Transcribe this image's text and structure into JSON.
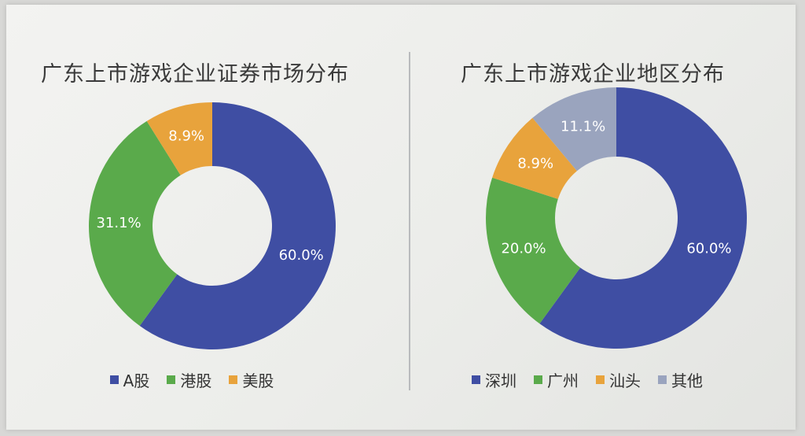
{
  "chart_data": [
    {
      "type": "pie",
      "title": "广东上市游戏企业证券市场分布",
      "categories": [
        "A股",
        "港股",
        "美股"
      ],
      "values": [
        60.0,
        31.1,
        8.9
      ],
      "labels": [
        "60.0%",
        "31.1%",
        "8.9%"
      ],
      "colors": [
        "#3f4ea3",
        "#5aaa4b",
        "#e8a33c"
      ],
      "legend_position": "bottom"
    },
    {
      "type": "pie",
      "title": "广东上市游戏企业地区分布",
      "categories": [
        "深圳",
        "广州",
        "汕头",
        "其他"
      ],
      "values": [
        60.0,
        20.0,
        8.9,
        11.1
      ],
      "labels": [
        "60.0%",
        "20.0%",
        "8.9%",
        "11.1%"
      ],
      "colors": [
        "#3f4ea3",
        "#5aaa4b",
        "#e8a33c",
        "#9aa4be"
      ],
      "legend_position": "bottom"
    }
  ]
}
